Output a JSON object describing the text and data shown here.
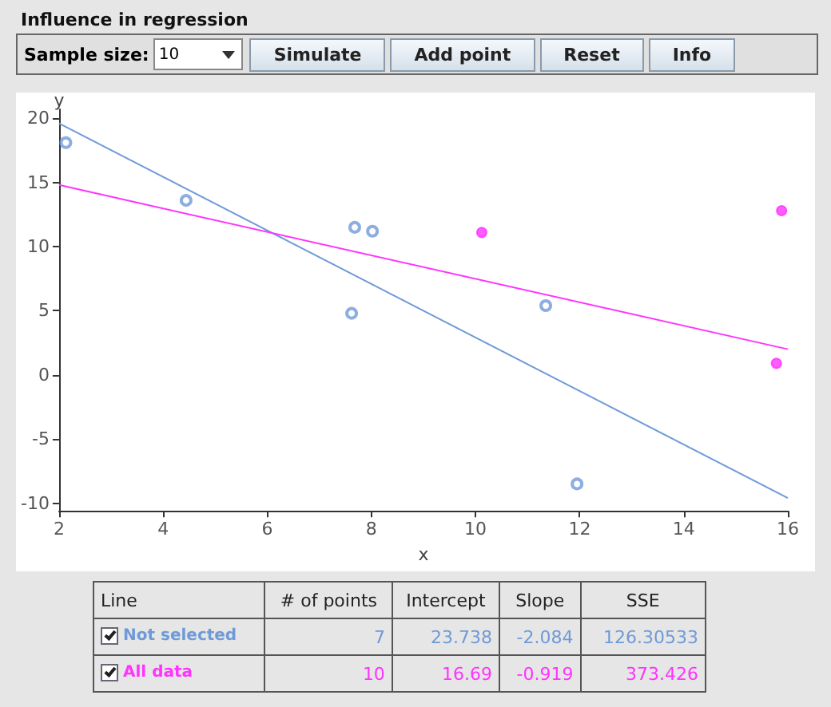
{
  "chart_data": [
    {
      "type": "scatter",
      "title": "Influence in regression",
      "xlabel": "x",
      "ylabel": "y",
      "xlim": [
        2,
        16
      ],
      "ylim": [
        -10.6,
        20.7
      ],
      "xticks": [
        2,
        4,
        6,
        8,
        10,
        12,
        14,
        16
      ],
      "yticks": [
        -10,
        -5,
        0,
        5,
        10,
        15,
        20
      ],
      "grid": false,
      "marker": "circle",
      "series": [
        {
          "color": "#6f9ad8",
          "x": [
            2.13,
            4.44,
            7.68,
            8.02,
            7.62,
            11.35,
            11.95
          ],
          "values": [
            18.1,
            13.6,
            11.5,
            11.2,
            4.8,
            5.4,
            -8.5
          ]
        },
        {
          "color": "#ff33ff",
          "x": [
            10.12,
            15.88,
            15.78
          ],
          "values": [
            11.1,
            12.8,
            0.9
          ]
        },
        {
          "type": "line",
          "marker": "none",
          "color": "#6f9ad8",
          "x": [
            2,
            16
          ],
          "values": [
            19.6,
            -9.6
          ]
        },
        {
          "type": "line",
          "marker": "none",
          "color": "#ff33ff",
          "x": [
            2,
            16
          ],
          "values": [
            14.8,
            2.0
          ]
        }
      ]
    },
    {
      "type": "other",
      "annotations": [
        "Sample size:",
        "10",
        "Simulate",
        "Add point",
        "Reset",
        "Info",
        "Line",
        "# of points",
        "Intercept",
        "Slope",
        "SSE",
        "Not selected",
        "7",
        "23.738",
        "-2.084",
        "126.30533",
        "All data",
        "10",
        "16.69",
        "-0.919",
        "373.426"
      ]
    }
  ]
}
